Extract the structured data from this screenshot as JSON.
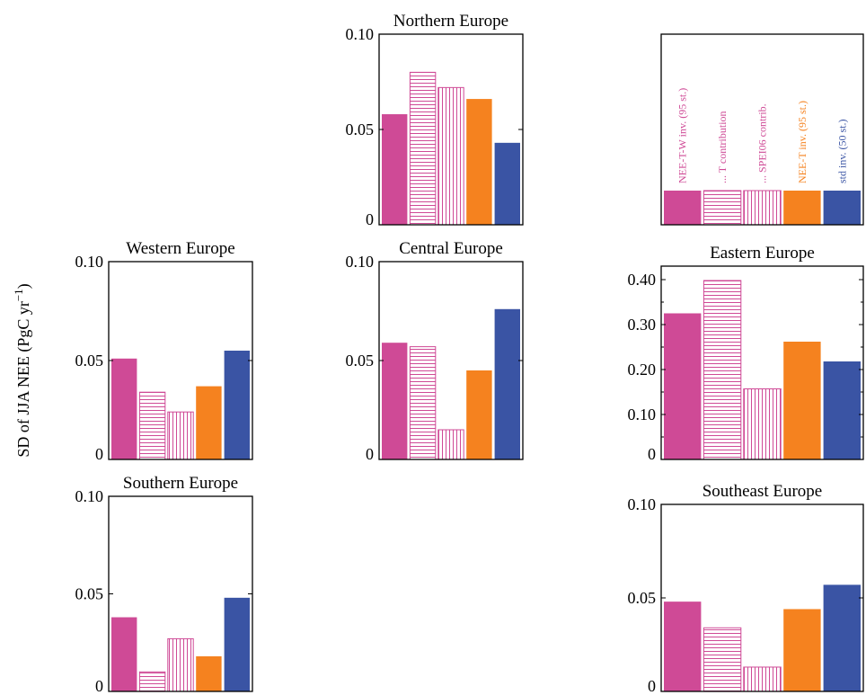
{
  "figure": {
    "ylabel_main": "SD of JJA NEE (PgC yr",
    "ylabel_sup": "−1",
    "ylabel_close": ")"
  },
  "colors": {
    "magenta": "#cf4a96",
    "orange": "#f5821f",
    "blue": "#3a54a4",
    "frame": "#000000"
  },
  "legend": {
    "entries": [
      {
        "label": "NEE-T-W inv. (95 st.)",
        "style": "solid",
        "color": "#cf4a96"
      },
      {
        "label": "... T contribution",
        "style": "hstripe",
        "color": "#cf4a96"
      },
      {
        "label": "... SPEI06 contrib.",
        "style": "vstripe",
        "color": "#cf4a96"
      },
      {
        "label": "NEE-T inv. (95 st.)",
        "style": "solid",
        "color": "#f5821f"
      },
      {
        "label": "std inv. (50 st.)",
        "style": "solid",
        "color": "#3a54a4"
      }
    ]
  },
  "chart_data": [
    {
      "type": "bar",
      "title": "Northern Europe",
      "categories": [
        "NEE-T-W inv. (95 st.)",
        "... T contribution",
        "... SPEI06 contrib.",
        "NEE-T inv. (95 st.)",
        "std inv. (50 st.)"
      ],
      "values": [
        0.058,
        0.08,
        0.072,
        0.066,
        0.043
      ],
      "ylim": [
        0,
        0.1
      ],
      "yticks": [
        "0",
        "0.05",
        "0.10"
      ],
      "ytick_values": [
        0,
        0.05,
        0.1
      ]
    },
    {
      "type": "bar",
      "title": "Western Europe",
      "categories": [
        "NEE-T-W inv. (95 st.)",
        "... T contribution",
        "... SPEI06 contrib.",
        "NEE-T inv. (95 st.)",
        "std inv. (50 st.)"
      ],
      "values": [
        0.051,
        0.034,
        0.024,
        0.037,
        0.055
      ],
      "ylim": [
        0,
        0.1
      ],
      "yticks": [
        "0",
        "0.05",
        "0.10"
      ],
      "ytick_values": [
        0,
        0.05,
        0.1
      ]
    },
    {
      "type": "bar",
      "title": "Central Europe",
      "categories": [
        "NEE-T-W inv. (95 st.)",
        "... T contribution",
        "... SPEI06 contrib.",
        "NEE-T inv. (95 st.)",
        "std inv. (50 st.)"
      ],
      "values": [
        0.059,
        0.057,
        0.015,
        0.045,
        0.076
      ],
      "ylim": [
        0,
        0.1
      ],
      "yticks": [
        "0",
        "0.05",
        "0.10"
      ],
      "ytick_values": [
        0,
        0.05,
        0.1
      ]
    },
    {
      "type": "bar",
      "title": "Eastern Europe",
      "categories": [
        "NEE-T-W inv. (95 st.)",
        "... T contribution",
        "... SPEI06 contrib.",
        "NEE-T inv. (95 st.)",
        "std inv. (50 st.)"
      ],
      "values": [
        0.325,
        0.398,
        0.157,
        0.262,
        0.218
      ],
      "ylim": [
        0,
        0.43
      ],
      "yticks": [
        "0",
        "0.10",
        "0.20",
        "0.30",
        "0.40"
      ],
      "ytick_values": [
        0,
        0.1,
        0.2,
        0.3,
        0.4
      ]
    },
    {
      "type": "bar",
      "title": "Southern Europe",
      "categories": [
        "NEE-T-W inv. (95 st.)",
        "... T contribution",
        "... SPEI06 contrib.",
        "NEE-T inv. (95 st.)",
        "std inv. (50 st.)"
      ],
      "values": [
        0.038,
        0.01,
        0.027,
        0.018,
        0.048
      ],
      "ylim": [
        0,
        0.1
      ],
      "yticks": [
        "0",
        "0.05",
        "0.10"
      ],
      "ytick_values": [
        0,
        0.05,
        0.1
      ]
    },
    {
      "type": "bar",
      "title": "Southeast Europe",
      "categories": [
        "NEE-T-W inv. (95 st.)",
        "... T contribution",
        "... SPEI06 contrib.",
        "NEE-T inv. (95 st.)",
        "std inv. (50 st.)"
      ],
      "values": [
        0.048,
        0.034,
        0.013,
        0.044,
        0.057
      ],
      "ylim": [
        0,
        0.1
      ],
      "yticks": [
        "0",
        "0.05",
        "0.10"
      ],
      "ytick_values": [
        0,
        0.05,
        0.1
      ]
    }
  ]
}
